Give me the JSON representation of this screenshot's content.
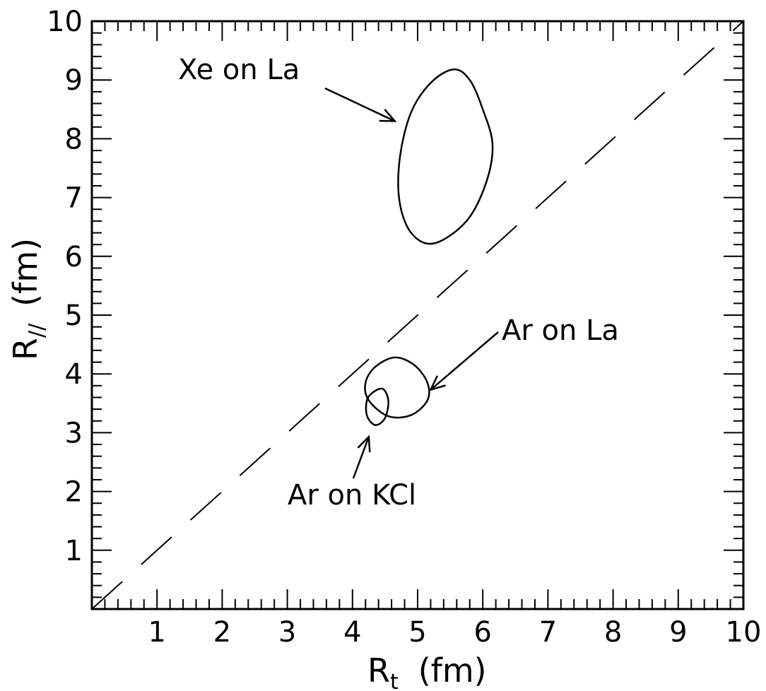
{
  "chart_data": {
    "type": "scatter",
    "title": "",
    "xlabel": {
      "main": "R",
      "sub": "t",
      "unit": "(fm)"
    },
    "ylabel": {
      "main": "R",
      "sub": "//",
      "unit": "(fm)"
    },
    "xlim": [
      0,
      10
    ],
    "ylim": [
      0,
      10
    ],
    "x_ticks": [
      "1",
      "2",
      "3",
      "4",
      "5",
      "6",
      "7",
      "8",
      "9",
      "10"
    ],
    "y_ticks": [
      "1",
      "2",
      "3",
      "4",
      "5",
      "6",
      "7",
      "8",
      "9",
      "10"
    ],
    "grid": false,
    "reference_line": {
      "style": "dashed",
      "points": [
        [
          0,
          0
        ],
        [
          10,
          10
        ]
      ]
    },
    "series": [
      {
        "name": "Xe on La",
        "contour": [
          [
            5.55,
            9.18
          ],
          [
            5.8,
            9.0
          ],
          [
            6.0,
            8.5
          ],
          [
            6.15,
            7.9
          ],
          [
            6.05,
            7.25
          ],
          [
            5.75,
            6.6
          ],
          [
            5.25,
            6.22
          ],
          [
            4.9,
            6.4
          ],
          [
            4.72,
            6.95
          ],
          [
            4.73,
            7.7
          ],
          [
            4.9,
            8.45
          ],
          [
            5.2,
            8.95
          ],
          [
            5.55,
            9.18
          ]
        ]
      },
      {
        "name": "Ar on La",
        "contour": [
          [
            4.65,
            4.28
          ],
          [
            4.95,
            4.15
          ],
          [
            5.15,
            3.85
          ],
          [
            5.15,
            3.55
          ],
          [
            4.9,
            3.3
          ],
          [
            4.55,
            3.28
          ],
          [
            4.25,
            3.55
          ],
          [
            4.2,
            3.85
          ],
          [
            4.35,
            4.12
          ],
          [
            4.65,
            4.28
          ]
        ]
      },
      {
        "name": "Ar on KCl",
        "contour": [
          [
            4.45,
            3.75
          ],
          [
            4.55,
            3.55
          ],
          [
            4.5,
            3.25
          ],
          [
            4.35,
            3.13
          ],
          [
            4.22,
            3.3
          ],
          [
            4.24,
            3.6
          ],
          [
            4.45,
            3.75
          ]
        ]
      }
    ],
    "annotations": [
      {
        "text": "Xe on La",
        "points_to": [
          4.65,
          8.3
        ]
      },
      {
        "text": "Ar on La",
        "points_to": [
          5.2,
          3.73
        ]
      },
      {
        "text": "Ar on KCl",
        "points_to": [
          4.25,
          2.93
        ]
      }
    ]
  }
}
